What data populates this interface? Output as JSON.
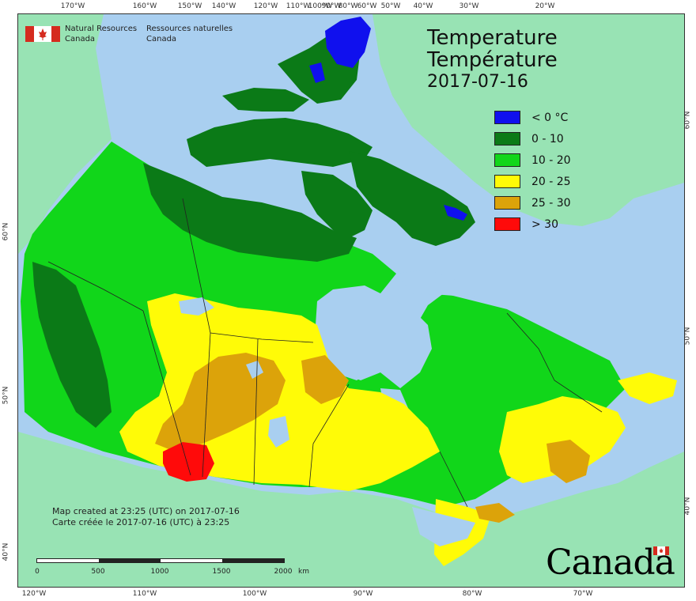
{
  "agency": {
    "name_en_line1": "Natural Resources",
    "name_en_line2": "Canada",
    "name_fr_line1": "Ressources naturelles",
    "name_fr_line2": "Canada"
  },
  "title": {
    "en": "Temperature",
    "fr": "Température",
    "date": "2017-07-16"
  },
  "legend": [
    {
      "label": "< 0 °C",
      "color": "#1010ee"
    },
    {
      "label": "0 - 10",
      "color": "#0b7a17"
    },
    {
      "label": "10 - 20",
      "color": "#11d61a"
    },
    {
      "label": "20 - 25",
      "color": "#fffb07"
    },
    {
      "label": "25 - 30",
      "color": "#dca30a"
    },
    {
      "label": "> 30",
      "color": "#ff0a0a"
    }
  ],
  "credit": {
    "en": "Map created at 23:25 (UTC) on 2017-07-16",
    "fr": "Carte créée le 2017-07-16 (UTC) à 23:25"
  },
  "scale": {
    "labels": [
      "0",
      "500",
      "1000",
      "1500",
      "2000"
    ],
    "unit": "km"
  },
  "top_ticks": [
    "170°W",
    "160°W",
    "150°W",
    "140°W",
    "120°W",
    "110°W",
    "100°W",
    "90°W",
    "80°W",
    "60°W",
    "50°W",
    "40°W",
    "30°W",
    "20°W"
  ],
  "bottom_ticks": [
    "120°W",
    "110°W",
    "100°W",
    "90°W",
    "80°W",
    "70°W"
  ],
  "left_ticks": [
    "60°N",
    "50°N",
    "40°N"
  ],
  "right_ticks": [
    "60°N",
    "50°N",
    "40°N"
  ],
  "wordmark": "Canada",
  "colors": {
    "ocean": "#a9cff0",
    "foreign_land": "#98e3b4",
    "boundary": "#222222"
  }
}
